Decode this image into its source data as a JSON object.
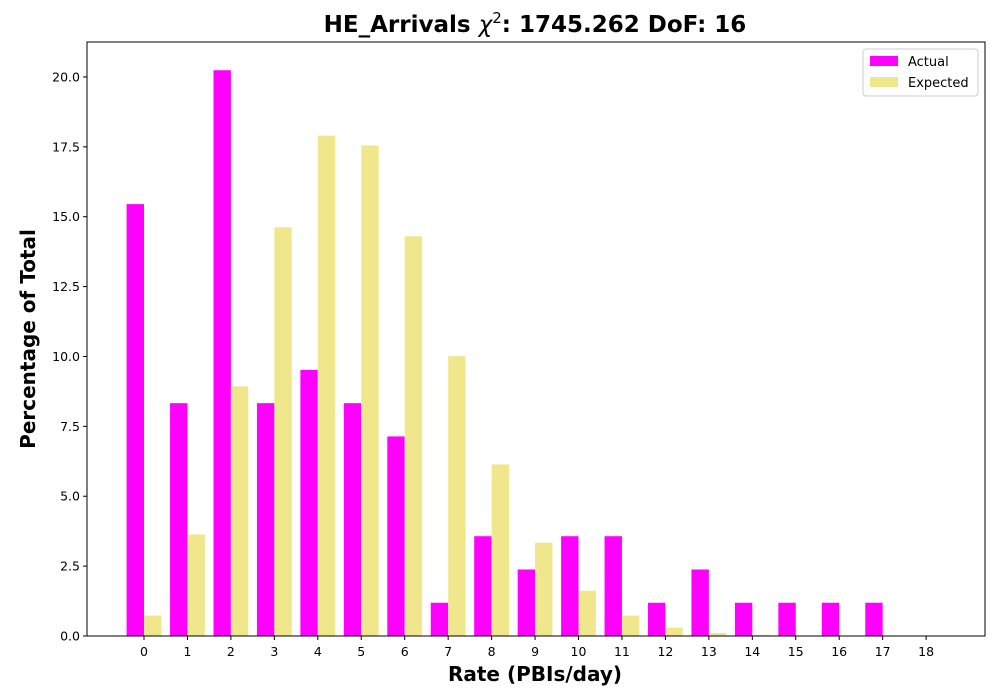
{
  "chart_data": {
    "type": "bar",
    "title_prefix": "HE_Arrivals ",
    "title_chi": "χ",
    "title_sup": "2",
    "title_suffix": ": 1745.262 DoF: 16",
    "xlabel": "Rate (PBIs/day)",
    "ylabel": "Percentage of Total",
    "categories": [
      "0",
      "1",
      "2",
      "3",
      "4",
      "5",
      "6",
      "7",
      "8",
      "9",
      "10",
      "11",
      "12",
      "13",
      "14",
      "15",
      "16",
      "17",
      "18"
    ],
    "ylim": [
      0,
      21.25
    ],
    "yticks": [
      "0.0",
      "2.5",
      "5.0",
      "7.5",
      "10.0",
      "12.5",
      "15.0",
      "17.5",
      "20.0"
    ],
    "ytick_values": [
      0,
      2.5,
      5.0,
      7.5,
      10.0,
      12.5,
      15.0,
      17.5,
      20.0
    ],
    "grid": false,
    "legend_position": "top-right",
    "series": [
      {
        "name": "Actual",
        "color": "#ff00ff",
        "values": [
          15.45,
          8.33,
          20.24,
          8.33,
          9.52,
          8.33,
          7.14,
          1.19,
          3.57,
          2.38,
          3.57,
          3.57,
          1.19,
          2.38,
          1.19,
          1.19,
          1.19,
          1.19,
          0
        ]
      },
      {
        "name": "Expected",
        "color": "#f0e68c",
        "values": [
          0.73,
          3.63,
          8.93,
          14.62,
          17.9,
          17.55,
          14.3,
          10.01,
          6.14,
          3.34,
          1.62,
          0.73,
          0.3,
          0.11,
          0.04,
          0.01,
          0.0,
          0.0,
          0.0
        ]
      }
    ]
  }
}
